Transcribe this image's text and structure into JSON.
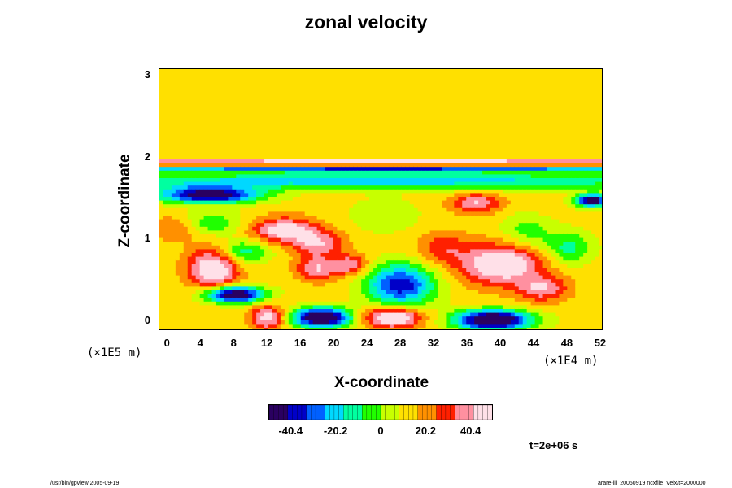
{
  "chart_data": {
    "type": "heatmap",
    "title": "zonal velocity",
    "xlabel": "X-coordinate",
    "ylabel": "Z-coordinate",
    "x_unit_label": "(×1E4 m)",
    "y_unit_label": "(×1E5 m)",
    "xlim": [
      -1,
      52.3
    ],
    "ylim": [
      -0.12,
      3.08
    ],
    "x_ticks": [
      0,
      4,
      8,
      12,
      16,
      20,
      24,
      28,
      32,
      36,
      40,
      44,
      48,
      52
    ],
    "y_ticks": [
      0,
      1,
      2,
      3
    ],
    "colorbar": {
      "range": [
        -50,
        50
      ],
      "tick_values": [
        -40.4,
        -20.2,
        0,
        20.2,
        40.4
      ],
      "tick_labels": [
        "-40.4",
        "-20.2",
        "0",
        "20.2",
        "40.4"
      ],
      "colors": [
        "#2a0060",
        "#0000c8",
        "#0060ff",
        "#00d8ff",
        "#00ffa0",
        "#20ff00",
        "#c8ff00",
        "#ffe000",
        "#ff9000",
        "#ff2000",
        "#ff90a0",
        "#ffe0e8"
      ]
    },
    "background_value": 12,
    "features": [
      {
        "x": 26,
        "z": 1.96,
        "rx": 40,
        "rz": 0.03,
        "value": 46
      },
      {
        "x": 26,
        "z": 1.86,
        "rx": 40,
        "rz": 0.03,
        "value": -36
      },
      {
        "x": 26,
        "z": 1.9,
        "rx": 40,
        "rz": 0.02,
        "value": 26
      },
      {
        "x": 26,
        "z": 1.72,
        "rx": 40,
        "rz": 0.1,
        "value": -22
      },
      {
        "x": 5,
        "z": 1.55,
        "rx": 6,
        "rz": 0.1,
        "value": -52
      },
      {
        "x": 1,
        "z": 1.15,
        "rx": 3,
        "rz": 0.15,
        "value": 30
      },
      {
        "x": 14,
        "z": 1.12,
        "rx": 4,
        "rz": 0.15,
        "value": 50
      },
      {
        "x": 18,
        "z": 0.95,
        "rx": 3,
        "rz": 0.15,
        "value": 40
      },
      {
        "x": 5.5,
        "z": 0.65,
        "rx": 3,
        "rz": 0.25,
        "value": 55
      },
      {
        "x": 8,
        "z": 0.33,
        "rx": 3.5,
        "rz": 0.1,
        "value": -55
      },
      {
        "x": 9,
        "z": 0.85,
        "rx": 3,
        "rz": 0.15,
        "value": -15
      },
      {
        "x": 12,
        "z": 0.05,
        "rx": 2,
        "rz": 0.15,
        "value": 48
      },
      {
        "x": 18.5,
        "z": 0.05,
        "rx": 3.5,
        "rz": 0.12,
        "value": -60
      },
      {
        "x": 18,
        "z": 0.65,
        "rx": 2.5,
        "rz": 0.15,
        "value": 42
      },
      {
        "x": 22,
        "z": 0.7,
        "rx": 2,
        "rz": 0.12,
        "value": 40
      },
      {
        "x": 27,
        "z": 0.05,
        "rx": 3.5,
        "rz": 0.12,
        "value": 58
      },
      {
        "x": 28,
        "z": 0.45,
        "rx": 4,
        "rz": 0.25,
        "value": -40
      },
      {
        "x": 26,
        "z": 1.3,
        "rx": 4,
        "rz": 0.2,
        "value": 0
      },
      {
        "x": 39,
        "z": 0.02,
        "rx": 4.5,
        "rz": 0.12,
        "value": -62
      },
      {
        "x": 40,
        "z": 0.7,
        "rx": 5,
        "rz": 0.25,
        "value": 55
      },
      {
        "x": 45,
        "z": 0.4,
        "rx": 3,
        "rz": 0.15,
        "value": 40
      },
      {
        "x": 37,
        "z": 1.45,
        "rx": 3,
        "rz": 0.12,
        "value": 42
      },
      {
        "x": 51,
        "z": 1.48,
        "rx": 2,
        "rz": 0.08,
        "value": -52
      },
      {
        "x": 43,
        "z": 1.1,
        "rx": 3,
        "rz": 0.2,
        "value": -5
      },
      {
        "x": 48,
        "z": 0.9,
        "rx": 3,
        "rz": 0.2,
        "value": -12
      },
      {
        "x": 33,
        "z": 0.9,
        "rx": 3,
        "rz": 0.2,
        "value": 30
      },
      {
        "x": 5,
        "z": 1.2,
        "rx": 4,
        "rz": 0.15,
        "value": -8
      }
    ]
  },
  "time_label": "t=2e+06 s",
  "footer": {
    "left": "/usr/bin/gpview 2005-09-19",
    "right": "arare-ill_20050919 ncxfile_Velx/t=2000000"
  }
}
